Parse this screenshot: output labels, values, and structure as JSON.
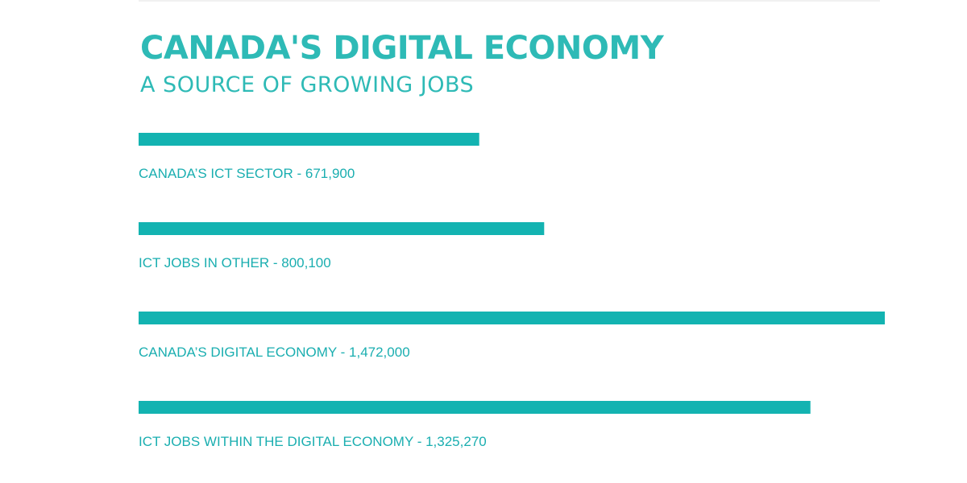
{
  "title": "CANADA'S DIGITAL ECONOMY",
  "subtitle": "A SOURCE OF GROWING JOBS",
  "colors": {
    "accent": "#2ebab6",
    "bar": "#13b3b1",
    "label": "#1aaeb0"
  },
  "chart_data": {
    "type": "bar",
    "orientation": "horizontal",
    "title": "CANADA'S DIGITAL ECONOMY",
    "subtitle": "A SOURCE OF GROWING JOBS",
    "xlim": [
      0,
      1472000
    ],
    "grid": false,
    "legend": "none",
    "items": [
      {
        "label": "CANADA’S ICT SECTOR - 671,900",
        "value": 671900
      },
      {
        "label": "ICT JOBS IN OTHER - 800,100",
        "value": 800100
      },
      {
        "label": "CANADA’S DIGITAL ECONOMY - 1,472,000",
        "value": 1472000
      },
      {
        "label": "ICT JOBS WITHIN THE DIGITAL ECONOMY - 1,325,270",
        "value": 1325270
      }
    ]
  }
}
